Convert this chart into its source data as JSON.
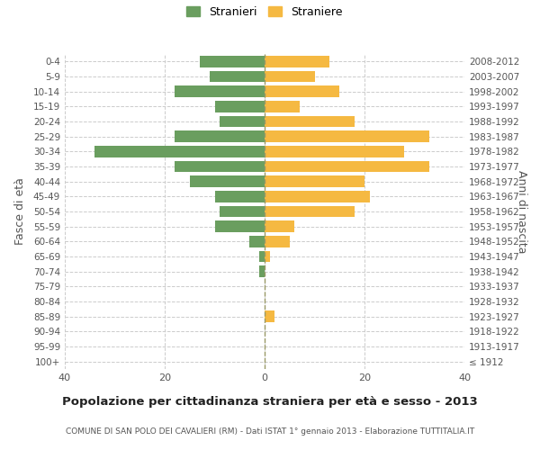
{
  "age_groups": [
    "100+",
    "95-99",
    "90-94",
    "85-89",
    "80-84",
    "75-79",
    "70-74",
    "65-69",
    "60-64",
    "55-59",
    "50-54",
    "45-49",
    "40-44",
    "35-39",
    "30-34",
    "25-29",
    "20-24",
    "15-19",
    "10-14",
    "5-9",
    "0-4"
  ],
  "birth_years": [
    "≤ 1912",
    "1913-1917",
    "1918-1922",
    "1923-1927",
    "1928-1932",
    "1933-1937",
    "1938-1942",
    "1943-1947",
    "1948-1952",
    "1953-1957",
    "1958-1962",
    "1963-1967",
    "1968-1972",
    "1973-1977",
    "1978-1982",
    "1983-1987",
    "1988-1992",
    "1993-1997",
    "1998-2002",
    "2003-2007",
    "2008-2012"
  ],
  "males": [
    0,
    0,
    0,
    0,
    0,
    0,
    1,
    1,
    3,
    10,
    9,
    10,
    15,
    18,
    34,
    18,
    9,
    10,
    18,
    11,
    13
  ],
  "females": [
    0,
    0,
    0,
    2,
    0,
    0,
    0,
    1,
    5,
    6,
    18,
    21,
    20,
    33,
    28,
    33,
    18,
    7,
    15,
    10,
    13
  ],
  "male_color": "#6a9e5f",
  "female_color": "#f5b942",
  "grid_color": "#cccccc",
  "center_line_color": "#999966",
  "title": "Popolazione per cittadinanza straniera per età e sesso - 2013",
  "subtitle": "COMUNE DI SAN POLO DEI CAVALIERI (RM) - Dati ISTAT 1° gennaio 2013 - Elaborazione TUTTITALIA.IT",
  "ylabel_left": "Fasce di età",
  "ylabel_right": "Anni di nascita",
  "legend_male": "Stranieri",
  "legend_female": "Straniere",
  "xlim": 40,
  "background_color": "#ffffff"
}
